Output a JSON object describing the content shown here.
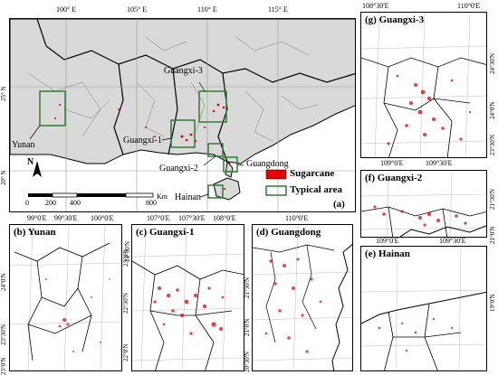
{
  "main_map": {
    "panel_label": "(a)",
    "lon_ticks": [
      "100° E",
      "105° E",
      "110° E",
      "115° E"
    ],
    "lat_ticks": [
      "25° N",
      "20° N"
    ],
    "area_labels": [
      "Guangxi-3",
      "Yunan",
      "Guangxi-1",
      "Guangdong",
      "Guangxi-2",
      "Hainan"
    ],
    "scale_bar": {
      "ticks": [
        "0",
        "200",
        "400",
        "800"
      ],
      "unit": "Km"
    },
    "north_arrow": "N",
    "legend": [
      {
        "label": "Sugarcane",
        "color": "#e60000"
      },
      {
        "label": "Typical area",
        "color": "#2e7d32"
      }
    ]
  },
  "inset_b": {
    "title": "(b) Yunan",
    "lon_ticks": [
      "99°0'E",
      "99°30'E",
      "100°0'E"
    ],
    "lat_ticks": [
      "24°0'N",
      "23°30'N",
      "23°0'N",
      "24°30'N"
    ]
  },
  "inset_c": {
    "title": "(c) Guangxi-1",
    "lon_ticks": [
      "107°0'E",
      "107°30'E",
      "108°0'E"
    ],
    "lat_ticks": [
      "23°0'N",
      "22°30'N",
      "22°0'N"
    ]
  },
  "inset_d": {
    "title": "(d) Guangdong",
    "lon_ticks": [
      "110°0'E"
    ],
    "lat_ticks": [
      "21°30'N",
      "21°0'N",
      "20°30'N"
    ]
  },
  "inset_g": {
    "title": "(g) Guangxi-3",
    "lon_ticks": [
      "108°30'E",
      "109°0'E",
      "110°0'E",
      "109°30'E"
    ],
    "lat_ticks": [
      "24°30'N",
      "24°0'N",
      "23°30'N"
    ]
  },
  "inset_f": {
    "title": "(f) Guangxi-2",
    "lon_ticks": [
      "109°0'E",
      "109°30'E"
    ],
    "lat_ticks": [
      "21°30'N",
      "21°0'N"
    ]
  },
  "inset_e": {
    "title": "(e) Hainan",
    "lat_ticks": [
      "19°0'N"
    ]
  },
  "colors": {
    "land": "#d9d9d9",
    "sea": "#ffffff",
    "sugarcane": "#e60000",
    "box": "#2e7d32"
  }
}
